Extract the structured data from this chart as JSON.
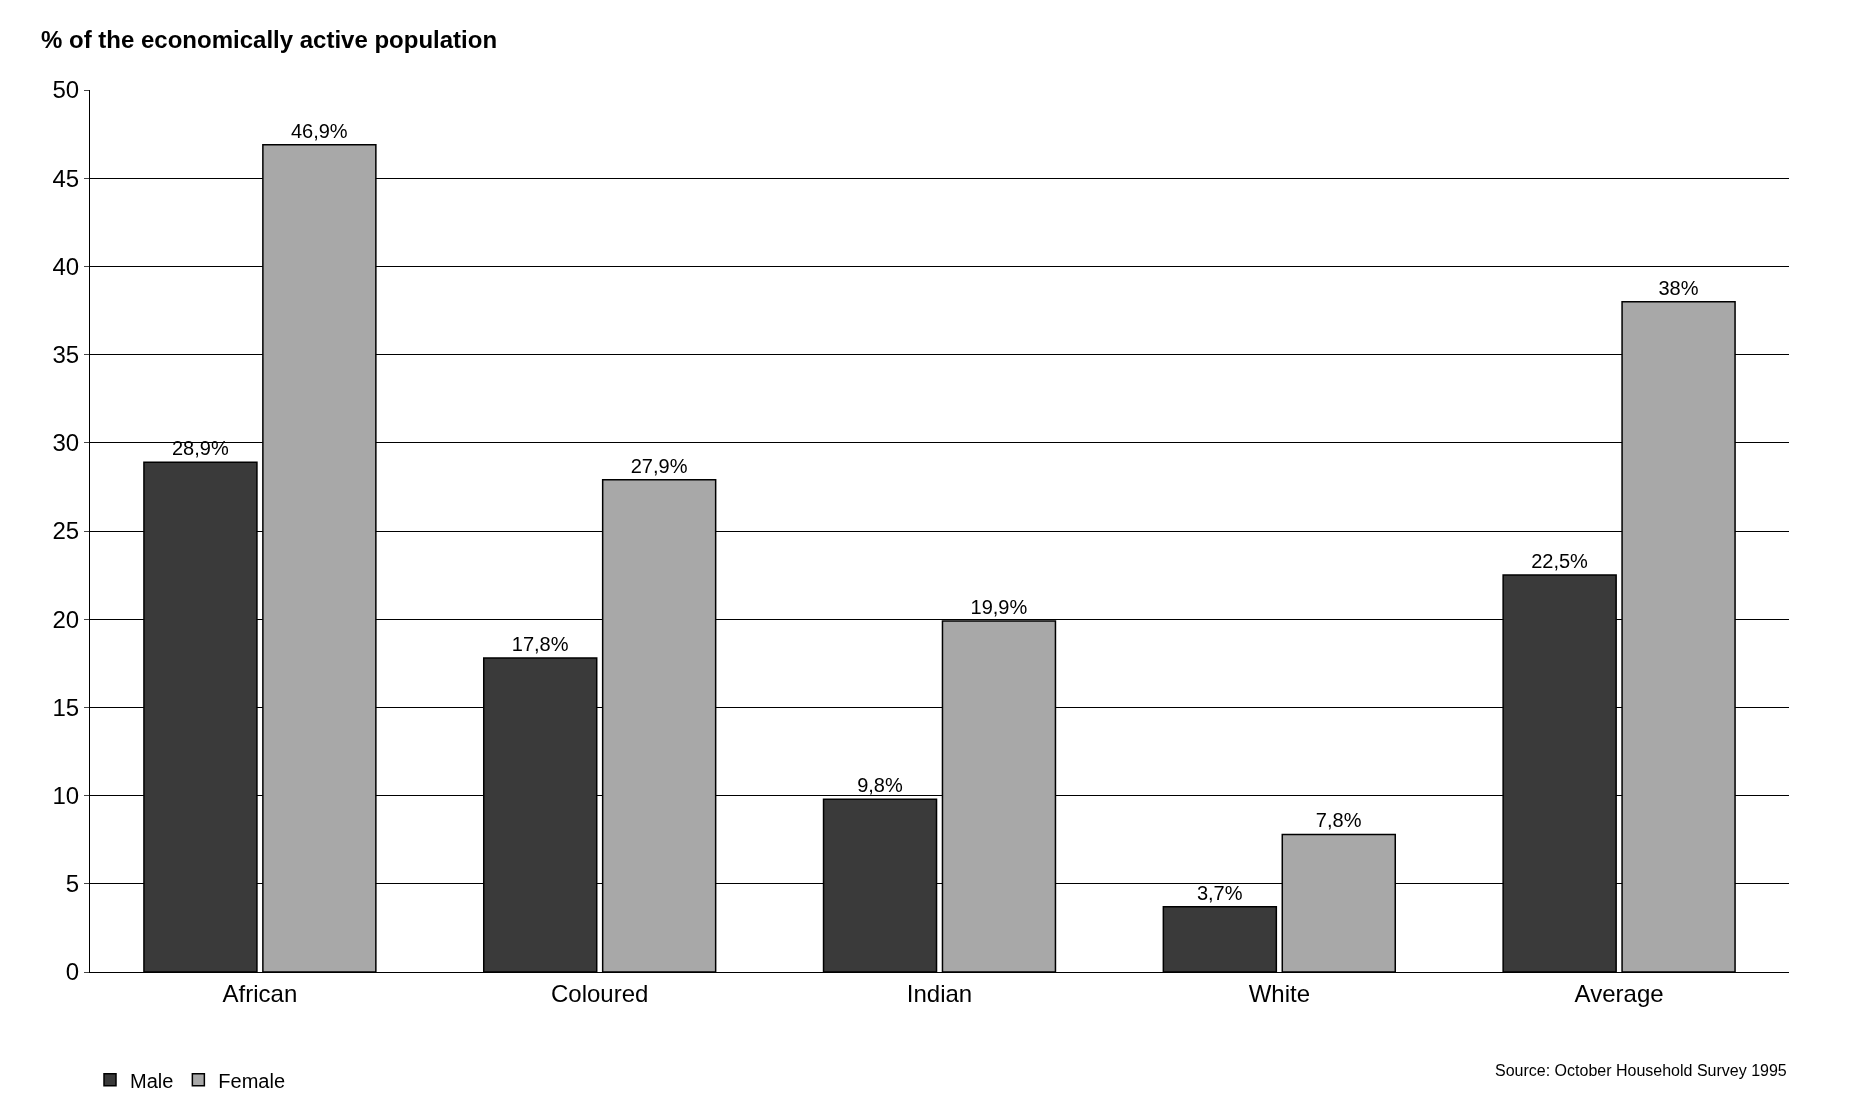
{
  "chart_data": {
    "type": "bar",
    "ylabel": "% of the economically active population",
    "categories": [
      "African",
      "Coloured",
      "Indian",
      "White",
      "Average"
    ],
    "series": [
      {
        "name": "Male",
        "color": "#3a3a3a",
        "values": [
          28.9,
          17.8,
          9.8,
          3.7,
          22.5
        ],
        "value_labels": [
          "28,9%",
          "17,8%",
          "9,8%",
          "3,7%",
          "22,5%"
        ]
      },
      {
        "name": "Female",
        "color": "#a8a8a8",
        "values": [
          46.9,
          27.9,
          19.9,
          7.8,
          38
        ],
        "value_labels": [
          "46,9%",
          "27,9%",
          "19,9%",
          "7,8%",
          "38%"
        ]
      }
    ],
    "ylim": [
      0,
      50
    ],
    "yticks": [
      0,
      5,
      10,
      15,
      20,
      25,
      30,
      35,
      40,
      45,
      50
    ],
    "grid": "y",
    "legend": "bottom left",
    "annotations": [
      "Source: October Household Survey 1995"
    ]
  }
}
